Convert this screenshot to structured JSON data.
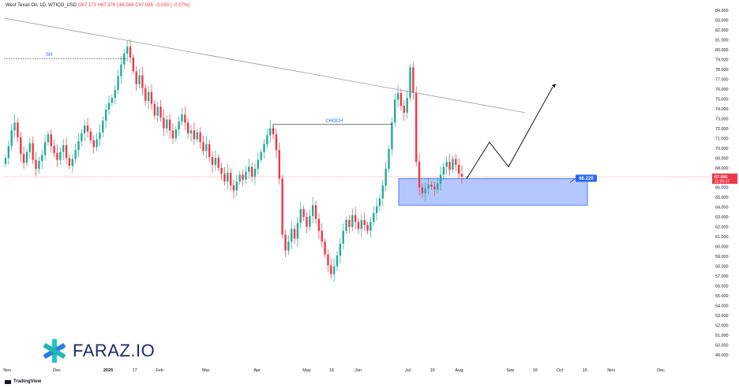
{
  "header": {
    "title": "West Texas Oil, 1D, WTICO_USD",
    "o": "O67.173",
    "h": "H67.376",
    "l": "L66.566",
    "c": "C67.095",
    "chg": "−0.050 (−0.07%)"
  },
  "brand": {
    "name": "FARAZ.IO",
    "logo_icon": "asterisk-star-icon"
  },
  "footer": {
    "tv_label": "TradingView"
  },
  "colors": {
    "up": "#22ab94",
    "down": "#f23645",
    "zone_fill": "#2962ff",
    "annot": "#2962ff",
    "tag": "#2962ff",
    "line": "#131722"
  },
  "chart_data": {
    "type": "candlestick",
    "symbol": "WTICO_USD",
    "interval": "1D",
    "ylim": [
      49.0,
      84.0
    ],
    "y_ticks": [
      "84.000",
      "83.000",
      "82.000",
      "81.000",
      "80.000",
      "79.000",
      "78.000",
      "77.000",
      "76.000",
      "75.000",
      "74.000",
      "73.000",
      "72.000",
      "71.000",
      "70.000",
      "69.000",
      "68.000",
      "67.000",
      "66.000",
      "65.000",
      "64.000",
      "63.000",
      "62.000",
      "61.000",
      "60.000",
      "59.000",
      "58.000",
      "57.000",
      "56.000",
      "55.000",
      "54.000",
      "53.000",
      "52.000",
      "51.000",
      "50.000",
      "49.000"
    ],
    "x_ticks": [
      "Nov",
      "Dec",
      "2025",
      "17",
      "Feb",
      "Mar",
      "Apr",
      "May",
      "16",
      "Jun",
      "Jul",
      "16",
      "Aug",
      "Sep",
      "16",
      "Oct",
      "16",
      "Nov",
      "Dec"
    ],
    "x_range": [
      "2024-10-30",
      "2025-12-31"
    ],
    "x_tick_dates": [
      "2024-11-01",
      "2024-12-01",
      "2025-01-01",
      "2025-01-17",
      "2025-02-01",
      "2025-03-01",
      "2025-04-01",
      "2025-05-01",
      "2025-05-16",
      "2025-06-01",
      "2025-07-01",
      "2025-07-16",
      "2025-08-01",
      "2025-09-01",
      "2025-09-16",
      "2025-10-01",
      "2025-10-16",
      "2025-11-01",
      "2025-12-01"
    ],
    "last_price": "67.095",
    "countdown": "11:50:47",
    "target_label": "66.220",
    "closes": [
      69.0,
      70.2,
      71.8,
      72.6,
      71.1,
      69.4,
      68.5,
      69.6,
      70.5,
      68.8,
      67.9,
      68.7,
      69.3,
      70.6,
      71.4,
      70.2,
      69.5,
      68.8,
      69.6,
      70.3,
      69.0,
      68.2,
      68.9,
      69.8,
      70.7,
      71.5,
      72.3,
      71.7,
      70.8,
      70.1,
      70.9,
      71.6,
      72.8,
      73.9,
      74.6,
      75.1,
      75.9,
      77.3,
      78.5,
      79.6,
      80.3,
      79.2,
      77.8,
      76.5,
      77.4,
      76.1,
      74.8,
      75.7,
      74.5,
      73.3,
      74.2,
      73.1,
      72.0,
      72.9,
      71.8,
      71.0,
      71.9,
      72.7,
      73.4,
      72.6,
      71.5,
      71.8,
      70.9,
      71.6,
      70.6,
      69.7,
      70.4,
      69.1,
      68.3,
      69.0,
      68.0,
      67.4,
      66.6,
      67.5,
      66.2,
      65.7,
      66.6,
      67.3,
      66.8,
      67.6,
      68.1,
      67.1,
      67.9,
      68.8,
      69.6,
      70.4,
      71.3,
      72.0,
      71.4,
      69.8,
      66.9,
      61.2,
      59.6,
      60.5,
      61.8,
      60.8,
      62.4,
      63.8,
      63.0,
      62.0,
      63.1,
      64.2,
      62.8,
      61.6,
      60.5,
      59.2,
      58.1,
      57.2,
      58.0,
      59.1,
      60.3,
      61.6,
      62.7,
      62.0,
      63.2,
      62.5,
      61.8,
      62.7,
      62.2,
      61.6,
      62.5,
      63.4,
      64.1,
      64.9,
      66.2,
      67.9,
      69.9,
      72.6,
      74.9,
      75.6,
      74.3,
      73.6,
      75.1,
      78.2,
      75.6,
      68.6,
      66.0,
      65.4,
      65.9,
      66.3,
      66.1,
      65.8,
      66.4,
      67.3,
      68.1,
      68.6,
      67.8,
      68.9,
      68.3,
      67.4,
      67.1
    ],
    "annotations": [
      {
        "label": "SH",
        "price": 79.1
      },
      {
        "label": "CHOCH",
        "price": 72.4
      }
    ],
    "zone": {
      "top": 66.9,
      "bottom": 64.2
    },
    "trendline": [
      [
        "2024-10-30",
        83.2
      ],
      [
        "2025-09-10",
        73.6
      ]
    ],
    "projection": [
      [
        66.9,
        70.6,
        68.1,
        76.2
      ]
    ],
    "price_line": 67.095
  }
}
